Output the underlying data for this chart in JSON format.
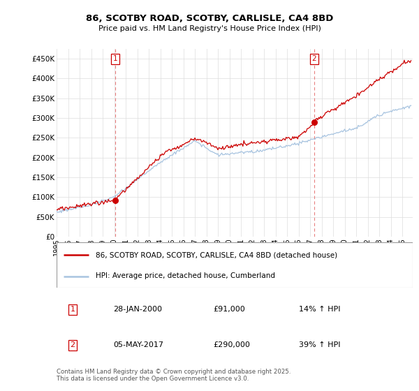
{
  "title": "86, SCOTBY ROAD, SCOTBY, CARLISLE, CA4 8BD",
  "subtitle": "Price paid vs. HM Land Registry's House Price Index (HPI)",
  "legend_line1": "86, SCOTBY ROAD, SCOTBY, CARLISLE, CA4 8BD (detached house)",
  "legend_line2": "HPI: Average price, detached house, Cumberland",
  "transaction1_label": "1",
  "transaction1_date": "28-JAN-2000",
  "transaction1_price": "£91,000",
  "transaction1_hpi": "14% ↑ HPI",
  "transaction2_label": "2",
  "transaction2_date": "05-MAY-2017",
  "transaction2_price": "£290,000",
  "transaction2_hpi": "39% ↑ HPI",
  "footer": "Contains HM Land Registry data © Crown copyright and database right 2025.\nThis data is licensed under the Open Government Licence v3.0.",
  "ylim": [
    0,
    475000
  ],
  "yticks": [
    0,
    50000,
    100000,
    150000,
    200000,
    250000,
    300000,
    350000,
    400000,
    450000
  ],
  "ytick_labels": [
    "£0",
    "£50K",
    "£100K",
    "£150K",
    "£200K",
    "£250K",
    "£300K",
    "£350K",
    "£400K",
    "£450K"
  ],
  "hpi_color": "#a8c4e0",
  "price_color": "#cc0000",
  "vline_color": "#e88080",
  "transaction1_x": 2000.08,
  "transaction1_y": 91000,
  "transaction2_x": 2017.34,
  "transaction2_y": 290000,
  "background_color": "#ffffff",
  "grid_color": "#dddddd",
  "xlim_left": 1995.0,
  "xlim_right": 2025.9
}
